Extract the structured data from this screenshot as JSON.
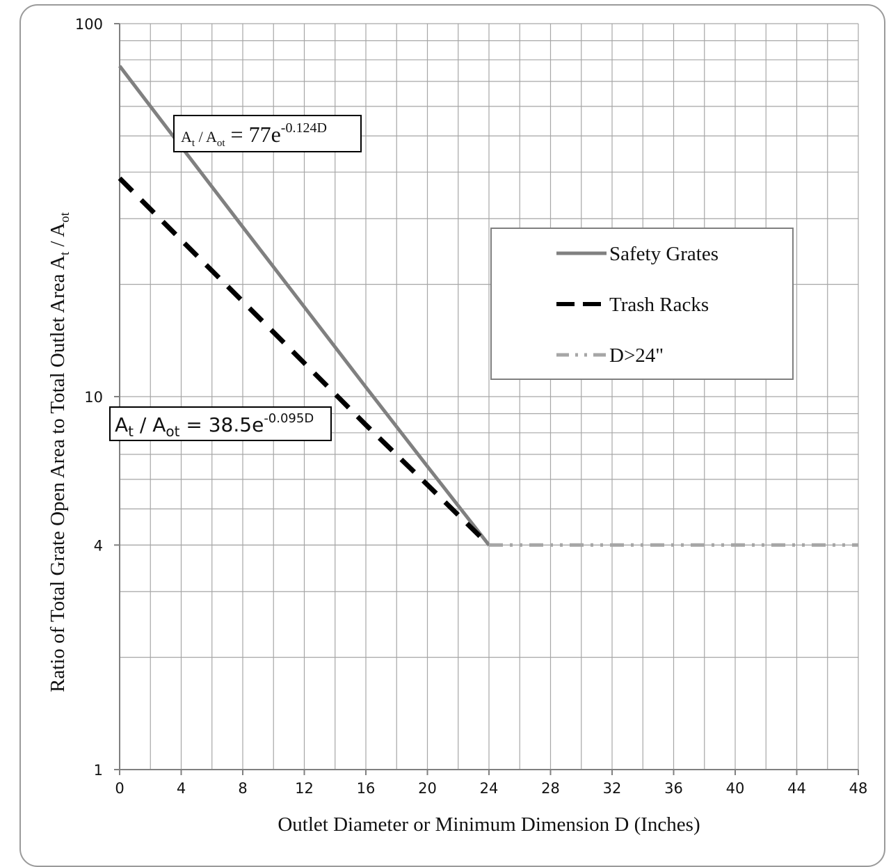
{
  "chart_data": {
    "type": "line",
    "title": "",
    "xlabel": "Outlet Diameter or Minimum Dimension D (Inches)",
    "ylabel_parts": {
      "main": "Ratio of Total Grate Open Area to Total Outlet Area A",
      "sub1": "t",
      "mid": " / A",
      "sub2": "ot"
    },
    "x_scale": "linear",
    "y_scale": "log",
    "xlim": [
      0,
      48
    ],
    "ylim": [
      1,
      100
    ],
    "x_ticks": [
      "0",
      "4",
      "8",
      "12",
      "16",
      "20",
      "24",
      "28",
      "32",
      "36",
      "40",
      "44",
      "48"
    ],
    "y_ticks": [
      {
        "value": 1,
        "label": "1"
      },
      {
        "value": 4,
        "label": "4"
      },
      {
        "value": 10,
        "label": "10"
      },
      {
        "value": 100,
        "label": "100"
      }
    ],
    "grid": true,
    "legend_position": "right",
    "series": [
      {
        "name": "Safety Grates",
        "style": "solid",
        "color": "#808080",
        "points": [
          [
            0,
            77
          ],
          [
            4,
            46.8
          ],
          [
            8,
            28.5
          ],
          [
            12,
            17.4
          ],
          [
            16,
            10.6
          ],
          [
            20,
            6.5
          ],
          [
            24,
            4
          ]
        ]
      },
      {
        "name": "Trash Racks",
        "style": "dashed",
        "color": "#000000",
        "points": [
          [
            0,
            38.5
          ],
          [
            4,
            26.3
          ],
          [
            8,
            18.0
          ],
          [
            12,
            12.3
          ],
          [
            16,
            8.4
          ],
          [
            20,
            5.8
          ],
          [
            24,
            4
          ]
        ]
      },
      {
        "name": "D>24\"",
        "style": "dash-dot-dot",
        "color": "#a6a6a6",
        "points": [
          [
            24,
            4
          ],
          [
            48,
            4
          ]
        ]
      }
    ],
    "annotations": [
      {
        "id": "safety",
        "base": "A",
        "sub1": "t",
        "mid": " / A",
        "sub2": "ot",
        "rhs": " = 77e",
        "exp": "-0.124D"
      },
      {
        "id": "trash",
        "base": "A",
        "sub1": "t",
        "mid": " / A",
        "sub2": "ot",
        "rhs": " = 38.5e",
        "exp": "-0.095D"
      }
    ]
  }
}
